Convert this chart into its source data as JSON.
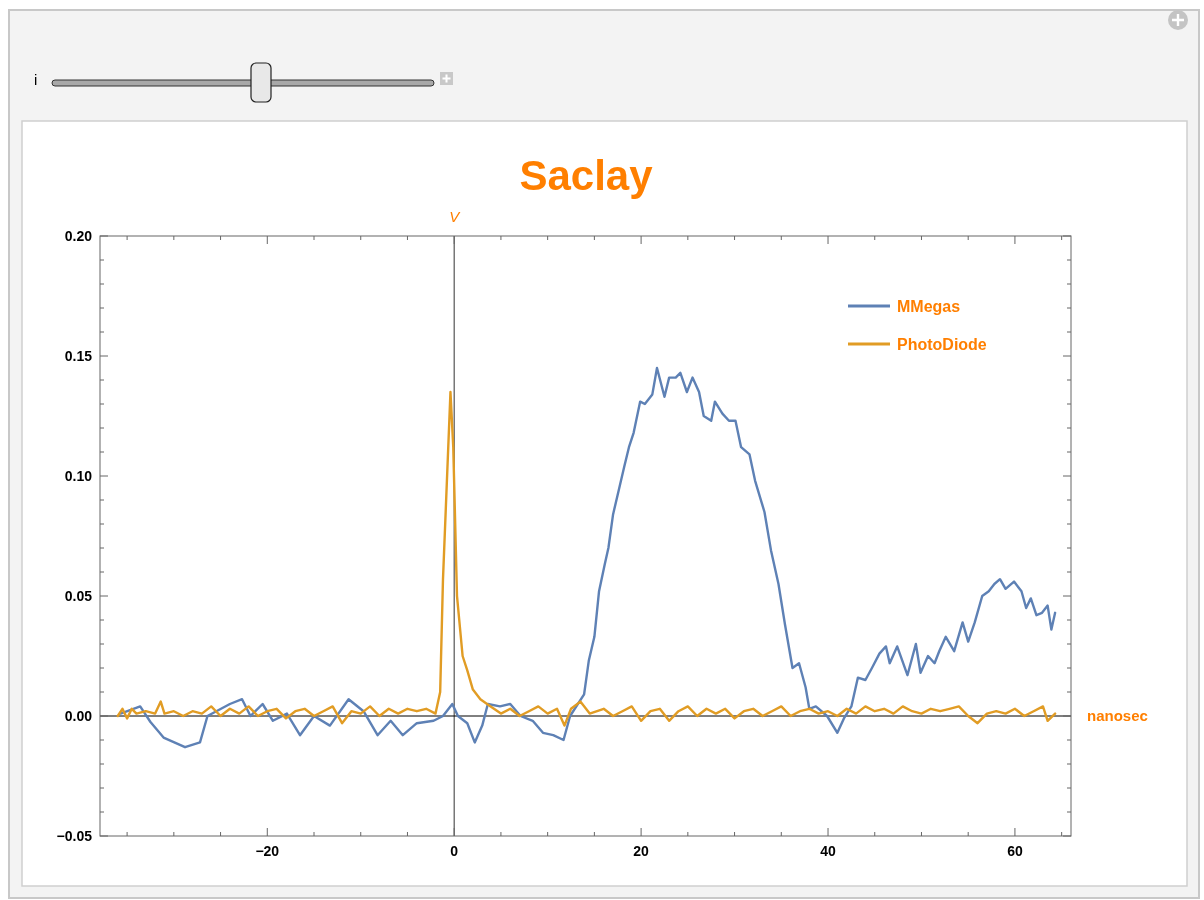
{
  "chart_data": {
    "type": "line",
    "title": "Saclay",
    "xlabel": "nanosec",
    "ylabel": "V",
    "annotations": [
      "i"
    ],
    "xlim": [
      -37.9,
      66
    ],
    "ylim": [
      -0.05,
      0.2
    ],
    "xticks": [
      {
        "value": -35,
        "label": null
      },
      {
        "value": -30,
        "label": null
      },
      {
        "value": -25,
        "label": null
      },
      {
        "value": -20,
        "label": "−20"
      },
      {
        "value": -15,
        "label": null
      },
      {
        "value": -10,
        "label": null
      },
      {
        "value": -5,
        "label": null
      },
      0,
      {
        "value": 5,
        "label": null
      },
      {
        "value": 10,
        "label": null
      },
      {
        "value": 15,
        "label": null
      },
      20,
      {
        "value": 25,
        "label": null
      },
      {
        "value": 30,
        "label": null
      },
      {
        "value": 35,
        "label": null
      },
      40,
      {
        "value": 45,
        "label": null
      },
      {
        "value": 50,
        "label": null
      },
      {
        "value": 55,
        "label": null
      },
      60,
      {
        "value": 65,
        "label": null
      }
    ],
    "yticks": [
      {
        "value": -0.05,
        "label": "−0.05"
      },
      {
        "value": -0.04,
        "label": null
      },
      {
        "value": -0.03,
        "label": null
      },
      {
        "value": -0.02,
        "label": null
      },
      {
        "value": -0.01,
        "label": null
      },
      {
        "value": 0,
        "label": "0.00"
      },
      {
        "value": 0.01,
        "label": null
      },
      {
        "value": 0.02,
        "label": null
      },
      {
        "value": 0.03,
        "label": null
      },
      {
        "value": 0.04,
        "label": null
      },
      {
        "value": 0.05,
        "label": "0.05"
      },
      {
        "value": 0.06,
        "label": null
      },
      {
        "value": 0.07,
        "label": null
      },
      {
        "value": 0.08,
        "label": null
      },
      {
        "value": 0.09,
        "label": null
      },
      {
        "value": 0.1,
        "label": "0.10"
      },
      {
        "value": 0.11,
        "label": null
      },
      {
        "value": 0.12,
        "label": null
      },
      {
        "value": 0.13,
        "label": null
      },
      {
        "value": 0.14,
        "label": null
      },
      {
        "value": 0.15,
        "label": "0.15"
      },
      {
        "value": 0.16,
        "label": null
      },
      {
        "value": 0.17,
        "label": null
      },
      {
        "value": 0.18,
        "label": null
      },
      {
        "value": 0.19,
        "label": null
      },
      {
        "value": 0.2,
        "label": "0.20"
      }
    ],
    "ref_lines": [
      {
        "axis": "x",
        "value": 0,
        "color": "#555555"
      },
      {
        "axis": "y",
        "value": 0,
        "color": "#000000"
      }
    ],
    "legend": "top right",
    "grid": false,
    "line_style": "solid",
    "marker": "none",
    "series": [
      {
        "name": "MMegas",
        "color": "#5e81b5",
        "x": [
          -35.7,
          -33.6,
          -32.5,
          -31.1,
          -28.8,
          -27.2,
          -26.4,
          -24.0,
          -22.7,
          -21.8,
          -20.5,
          -19.4,
          -17.9,
          -16.5,
          -15.0,
          -13.3,
          -11.3,
          -9.7,
          -8.2,
          -6.8,
          -5.5,
          -4.0,
          -2.2,
          -1.2,
          -0.2,
          0.4,
          1.4,
          2.2,
          3.0,
          3.6,
          4.9,
          6.0,
          7.1,
          8.4,
          9.5,
          10.6,
          11.7,
          12.4,
          13.9,
          14.4,
          15.0,
          15.5,
          16.1,
          16.5,
          17.0,
          17.6,
          18.2,
          18.7,
          19.2,
          19.9,
          20.4,
          21.2,
          21.7,
          22.5,
          23.0,
          23.7,
          24.2,
          24.9,
          25.5,
          26.2,
          26.7,
          27.5,
          27.9,
          28.7,
          29.4,
          30.1,
          30.7,
          31.6,
          32.2,
          33.2,
          33.9,
          34.7,
          35.4,
          36.2,
          36.9,
          37.6,
          38.0,
          38.7,
          39.9,
          41.0,
          41.7,
          42.5,
          43.2,
          44.0,
          44.7,
          45.5,
          46.2,
          46.6,
          47.4,
          48.5,
          49.4,
          49.9,
          50.7,
          51.4,
          51.9,
          52.6,
          53.5,
          54.4,
          55.0,
          55.7,
          56.5,
          57.2,
          57.8,
          58.4,
          59.0,
          59.9,
          60.7,
          61.2,
          61.7,
          62.3,
          62.9,
          63.5,
          63.9,
          64.3
        ],
        "values": [
          0.001,
          0.004,
          -0.0025,
          -0.009,
          -0.013,
          -0.011,
          0.0,
          0.005,
          0.007,
          0.0,
          0.005,
          -0.002,
          0.001,
          -0.008,
          0.0,
          -0.004,
          0.007,
          0.002,
          -0.008,
          -0.002,
          -0.008,
          -0.003,
          -0.002,
          0.0,
          0.005,
          0.0,
          -0.003,
          -0.011,
          -0.004,
          0.005,
          0.004,
          0.005,
          0.0,
          -0.002,
          -0.007,
          -0.008,
          -0.01,
          0.0,
          0.009,
          0.023,
          0.033,
          0.052,
          0.063,
          0.07,
          0.084,
          0.094,
          0.104,
          0.112,
          0.118,
          0.131,
          0.13,
          0.134,
          0.145,
          0.133,
          0.141,
          0.141,
          0.143,
          0.135,
          0.141,
          0.135,
          0.125,
          0.123,
          0.131,
          0.126,
          0.123,
          0.123,
          0.112,
          0.109,
          0.098,
          0.085,
          0.069,
          0.055,
          0.038,
          0.02,
          0.022,
          0.012,
          0.003,
          0.004,
          0.0,
          -0.007,
          -0.001,
          0.004,
          0.016,
          0.015,
          0.02,
          0.026,
          0.029,
          0.022,
          0.029,
          0.017,
          0.03,
          0.018,
          0.025,
          0.022,
          0.027,
          0.033,
          0.027,
          0.039,
          0.031,
          0.039,
          0.05,
          0.052,
          0.055,
          0.057,
          0.053,
          0.056,
          0.052,
          0.045,
          0.049,
          0.042,
          0.043,
          0.046,
          0.036,
          0.043
        ]
      },
      {
        "name": "PhotoDiode",
        "color": "#e19c24",
        "x": [
          -36,
          -35.5,
          -35,
          -34.5,
          -34,
          -33,
          -32,
          -31.4,
          -31,
          -30,
          -29,
          -28,
          -27,
          -26,
          -25,
          -24,
          -23,
          -22,
          -21,
          -20,
          -19,
          -18,
          -17,
          -16,
          -15,
          -14,
          -13,
          -12,
          -11,
          -10,
          -9,
          -8,
          -7,
          -6,
          -5,
          -4,
          -3,
          -2,
          -1.5,
          -1.2,
          -0.4,
          -0.1,
          0.3,
          0.9,
          1.4,
          2.0,
          2.8,
          3.9,
          5,
          6,
          7,
          8,
          9,
          10,
          11,
          11.8,
          12.5,
          13.5,
          14.5,
          16,
          17,
          18,
          19,
          20,
          21,
          22,
          23,
          24,
          25,
          26,
          27,
          28,
          29,
          30,
          31,
          32,
          33,
          34,
          35,
          36,
          37,
          38,
          39,
          40,
          41,
          42,
          43,
          44,
          45,
          46,
          47,
          48,
          49,
          50,
          51,
          52,
          53,
          54,
          55,
          56,
          57,
          58,
          59,
          60,
          61,
          62,
          63,
          63.5,
          64.3
        ],
        "values": [
          0.0,
          0.003,
          -0.001,
          0.003,
          0.001,
          0.002,
          0.001,
          0.006,
          0.001,
          0.002,
          0.0,
          0.002,
          0.001,
          0.004,
          0.0,
          0.003,
          0.001,
          0.004,
          0.0,
          0.002,
          0.003,
          -0.001,
          0.002,
          0.003,
          0.0,
          0.002,
          0.004,
          -0.003,
          0.002,
          0.001,
          0.004,
          0.0,
          0.003,
          0.001,
          0.003,
          0.002,
          0.003,
          0.001,
          0.01,
          0.057,
          0.135,
          0.112,
          0.05,
          0.025,
          0.019,
          0.011,
          0.007,
          0.004,
          0.001,
          0.003,
          0.0,
          0.002,
          0.004,
          0.001,
          0.003,
          -0.004,
          0.003,
          0.006,
          0.001,
          0.003,
          0.0,
          0.002,
          0.004,
          -0.002,
          0.002,
          0.003,
          -0.002,
          0.002,
          0.004,
          0.0,
          0.003,
          0.001,
          0.003,
          -0.001,
          0.002,
          0.003,
          0.0,
          0.002,
          0.004,
          0.0,
          0.002,
          0.003,
          0.001,
          0.002,
          0.0,
          0.003,
          0.001,
          0.004,
          0.002,
          0.003,
          0.001,
          0.004,
          0.002,
          0.001,
          0.003,
          0.002,
          0.003,
          0.004,
          0.0,
          -0.003,
          0.001,
          0.002,
          0.001,
          0.003,
          0.0,
          0.002,
          0.004,
          -0.002,
          0.001
        ]
      }
    ]
  }
}
